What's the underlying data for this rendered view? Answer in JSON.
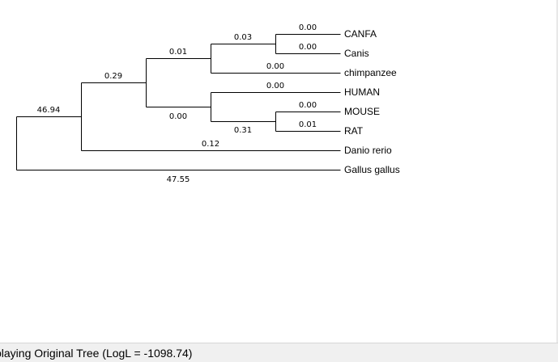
{
  "tree": {
    "taxa": [
      "CANFA",
      "Canis",
      "chimpanzee",
      "HUMAN",
      "MOUSE",
      "RAT",
      "Danio rerio",
      "Gallus gallus"
    ],
    "branch_lengths": {
      "canfa": "0.00",
      "canis": "0.00",
      "canfa_canis": "0.03",
      "chimpanzee": "0.00",
      "dog_chimp_clade": "0.01",
      "human": "0.00",
      "mouse": "0.00",
      "rat": "0.01",
      "mouse_rat": "0.31",
      "human_rodent_clade": "0.00",
      "mammal_clade": "0.29",
      "danio": "0.12",
      "ingroup": "46.94",
      "gallus": "47.55"
    }
  },
  "status": {
    "text": "playing Original Tree (LogL = -1098.74)"
  }
}
